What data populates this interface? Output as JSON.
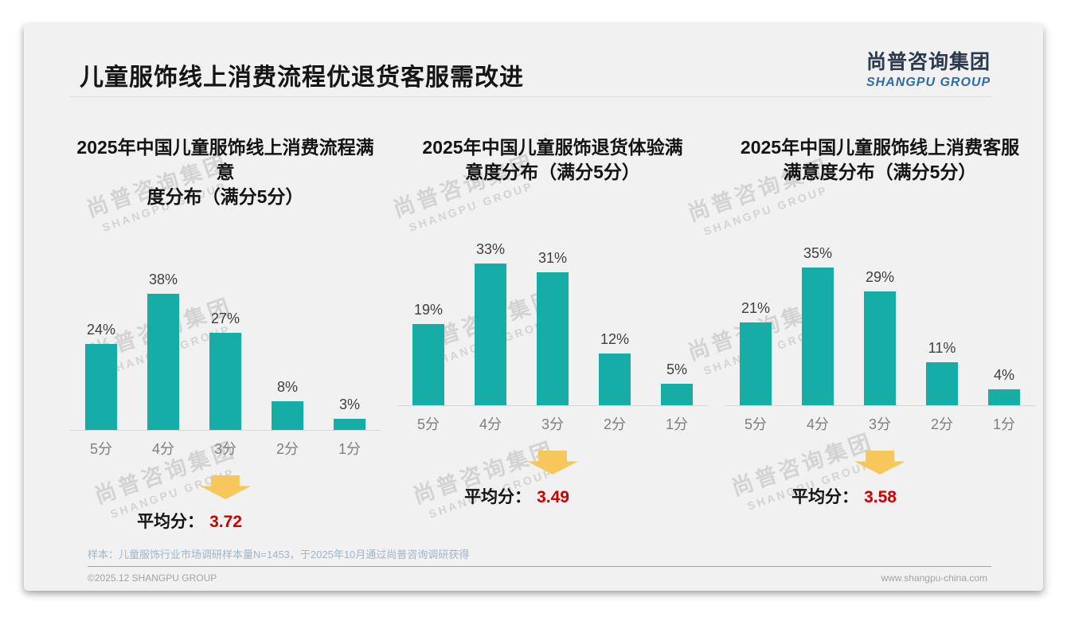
{
  "page": {
    "title": "儿童服饰线上消费流程优退货客服需改进",
    "logo": {
      "cn": "尚普咨询集团",
      "en": "SHANGPU GROUP"
    },
    "watermark": {
      "cn": "尚普咨询集团",
      "en": "SHANGPU GROUP"
    },
    "footer": {
      "note": "样本：儿童服饰行业市场调研样本量N=1453，于2025年10月通过尚普咨询调研获得",
      "copyright": "©2025.12 SHANGPU GROUP",
      "website": "www.shangpu-china.com"
    },
    "colors": {
      "bar": "#15ada6",
      "avg_value": "#cc0000",
      "arrow": "#f8c75b",
      "logo_cn": "#2c3a4e",
      "logo_en": "#2e6da4"
    }
  },
  "chart_data": [
    {
      "type": "bar",
      "title": "2025年中国儿童服饰线上消费流程满意\n度分布（满分5分）",
      "categories": [
        "5分",
        "4分",
        "3分",
        "2分",
        "1分"
      ],
      "values": [
        24,
        38,
        27,
        8,
        3
      ],
      "unit": "%",
      "ylim": [
        0,
        40
      ],
      "y_axis": "hidden",
      "grid": "off",
      "avg_label": "平均分：",
      "avg_value": "3.72"
    },
    {
      "type": "bar",
      "title": "2025年中国儿童服饰退货体验满\n意度分布（满分5分）",
      "categories": [
        "5分",
        "4分",
        "3分",
        "2分",
        "1分"
      ],
      "values": [
        19,
        33,
        31,
        12,
        5
      ],
      "unit": "%",
      "ylim": [
        0,
        35
      ],
      "y_axis": "hidden",
      "grid": "off",
      "avg_label": "平均分：",
      "avg_value": "3.49"
    },
    {
      "type": "bar",
      "title": "2025年中国儿童服饰线上消费客服\n满意度分布（满分5分）",
      "categories": [
        "5分",
        "4分",
        "3分",
        "2分",
        "1分"
      ],
      "values": [
        21,
        35,
        29,
        11,
        4
      ],
      "unit": "%",
      "ylim": [
        0,
        37
      ],
      "y_axis": "hidden",
      "grid": "off",
      "avg_label": "平均分：",
      "avg_value": "3.58"
    }
  ]
}
